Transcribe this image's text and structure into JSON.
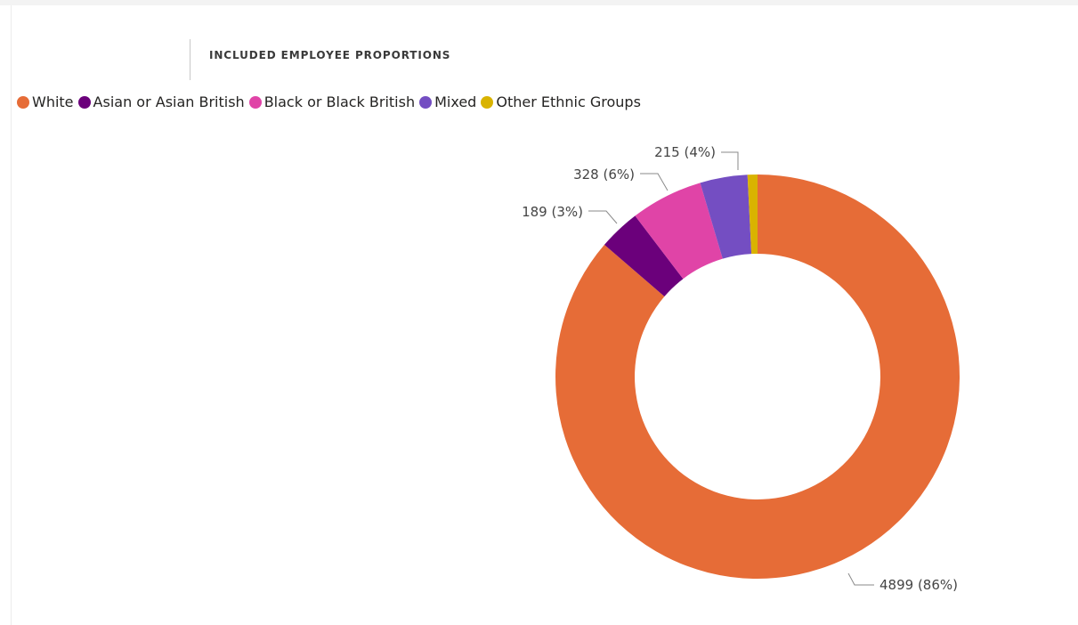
{
  "visual": {
    "title": "INCLUDED EMPLOYEE PROPORTIONS"
  },
  "chart_data": {
    "type": "pie",
    "subtype": "donut",
    "title": "INCLUDED EMPLOYEE PROPORTIONS",
    "legend_position": "top-left",
    "categories": [
      "White",
      "Asian or Asian British",
      "Black or Black British",
      "Mixed",
      "Other Ethnic Groups"
    ],
    "values": [
      4899,
      189,
      328,
      215,
      45
    ],
    "colors": [
      "#E66C37",
      "#6B007B",
      "#E044A7",
      "#744EC2",
      "#D9B300"
    ],
    "data_labels": [
      "4899 (86%)",
      "189 (3%)",
      "328 (6%)",
      "215 (4%)",
      ""
    ]
  }
}
